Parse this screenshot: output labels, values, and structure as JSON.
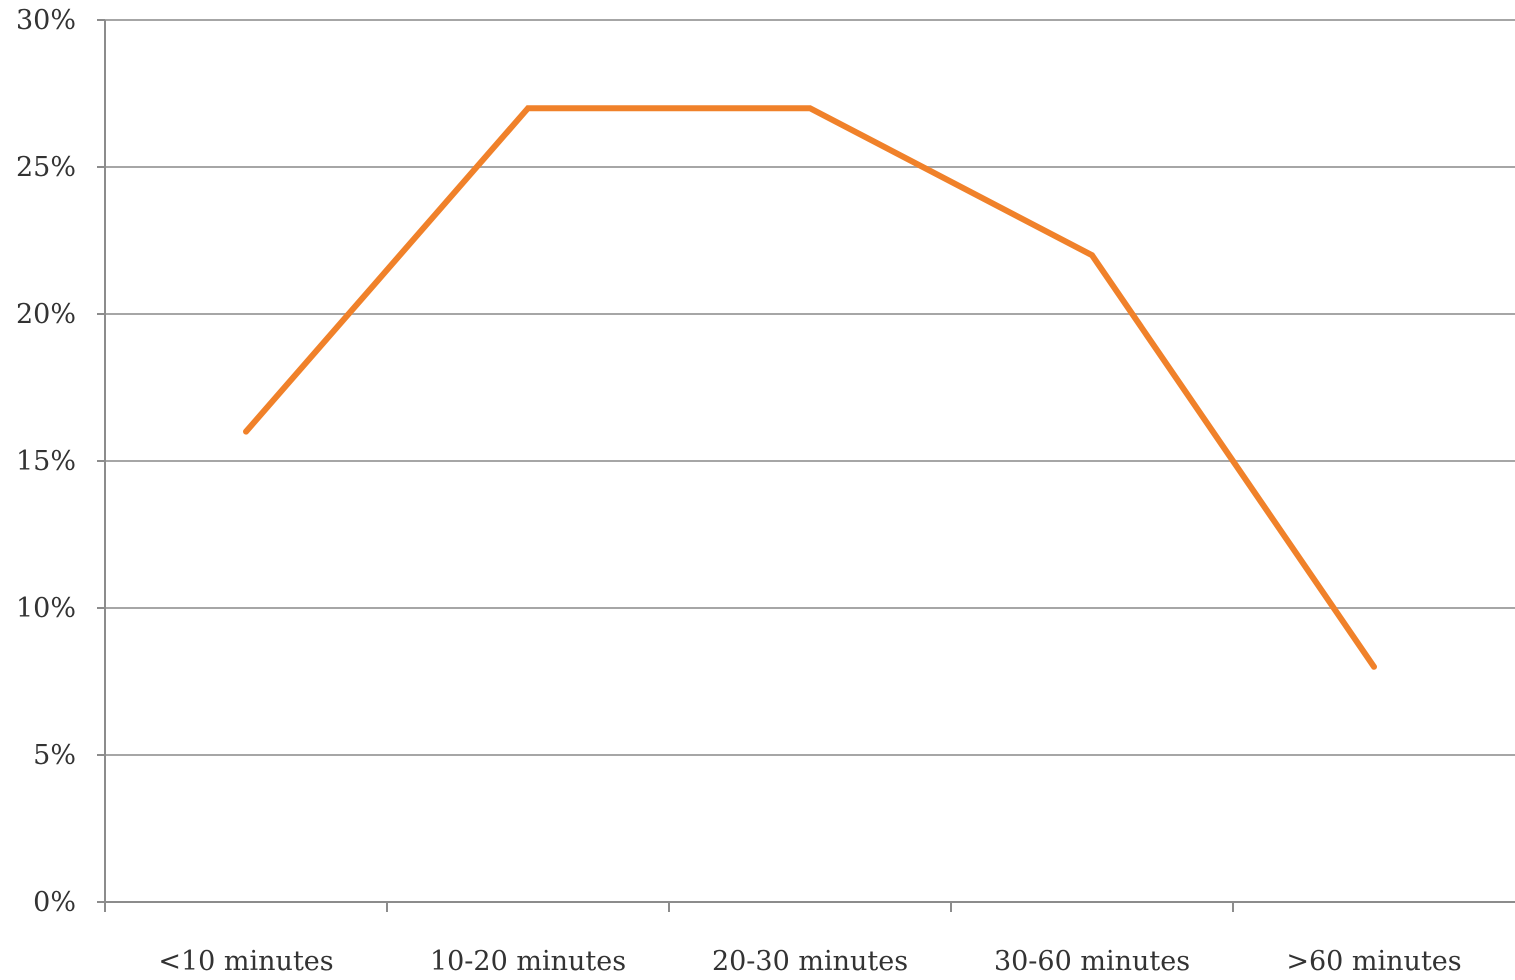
{
  "chart_data": {
    "type": "line",
    "categories": [
      "<10 minutes",
      "10-20 minutes",
      "20-30 minutes",
      "30-60 minutes",
      ">60 minutes"
    ],
    "series": [
      {
        "values": [
          16,
          27,
          27,
          22,
          8
        ],
        "color": "#f0812a"
      }
    ],
    "ylim": [
      0,
      30
    ],
    "yticks": [
      0,
      5,
      10,
      15,
      20,
      25,
      30
    ],
    "ytick_labels": [
      "0%",
      "5%",
      "10%",
      "15%",
      "20%",
      "25%",
      "30%"
    ],
    "grid": true,
    "legend": false,
    "gridline_color": "#a6a6a6",
    "axis_color": "#8c8c8c"
  }
}
